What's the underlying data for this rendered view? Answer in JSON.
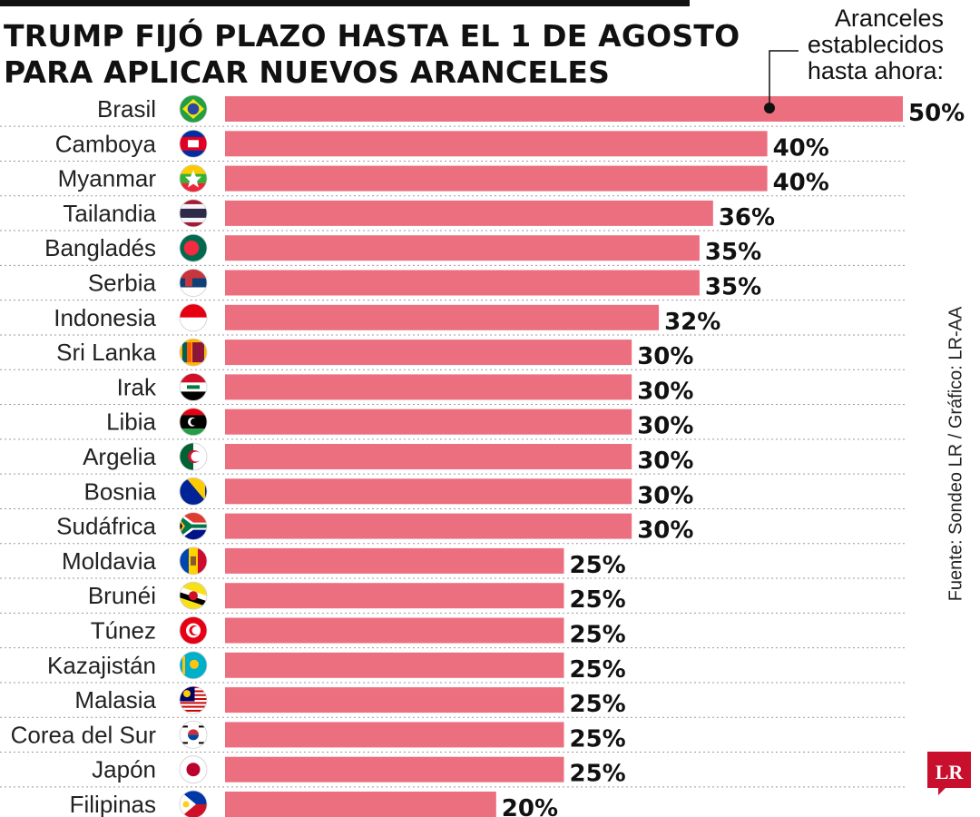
{
  "title": {
    "line1": "TRUMP FIJÓ PLAZO HASTA EL 1 DE AGOSTO",
    "line2": "PARA APLICAR NUEVOS ARANCELES"
  },
  "annotation": {
    "line1": "Aranceles",
    "line2": "establecidos",
    "line3": "hasta ahora:"
  },
  "source": "Fuente: Sondeo LR / Gráfico: LR-AA",
  "logo_text": "LR",
  "colors": {
    "bar": "#ec6f80",
    "text": "#111111",
    "gridline": "#9a9a9a",
    "logo": "#c8102e"
  },
  "chart_data": {
    "type": "bar",
    "orientation": "horizontal",
    "unit": "%",
    "categories": [
      "Brasil",
      "Camboya",
      "Myanmar",
      "Tailandia",
      "Bangladés",
      "Serbia",
      "Indonesia",
      "Sri Lanka",
      "Irak",
      "Libia",
      "Argelia",
      "Bosnia",
      "Sudáfrica",
      "Moldavia",
      "Brunéi",
      "Túnez",
      "Kazajistán",
      "Malasia",
      "Corea del Sur",
      "Japón",
      "Filipinas"
    ],
    "values": [
      50,
      40,
      40,
      36,
      35,
      35,
      32,
      30,
      30,
      30,
      30,
      30,
      30,
      25,
      25,
      25,
      25,
      25,
      25,
      25,
      20
    ],
    "value_labels": [
      "50%",
      "40%",
      "40%",
      "36%",
      "35%",
      "35%",
      "32%",
      "30%",
      "30%",
      "30%",
      "30%",
      "30%",
      "30%",
      "25%",
      "25%",
      "25%",
      "25%",
      "25%",
      "25%",
      "25%",
      "20%"
    ],
    "flags": [
      "brazil-flag-icon",
      "cambodia-flag-icon",
      "myanmar-flag-icon",
      "thailand-flag-icon",
      "bangladesh-flag-icon",
      "serbia-flag-icon",
      "indonesia-flag-icon",
      "sri-lanka-flag-icon",
      "iraq-flag-icon",
      "libya-flag-icon",
      "algeria-flag-icon",
      "bosnia-flag-icon",
      "south-africa-flag-icon",
      "moldova-flag-icon",
      "brunei-flag-icon",
      "tunisia-flag-icon",
      "kazakhstan-flag-icon",
      "malaysia-flag-icon",
      "south-korea-flag-icon",
      "japan-flag-icon",
      "philippines-flag-icon"
    ],
    "xlim": [
      0,
      50
    ],
    "grid": false,
    "legend": "none"
  }
}
